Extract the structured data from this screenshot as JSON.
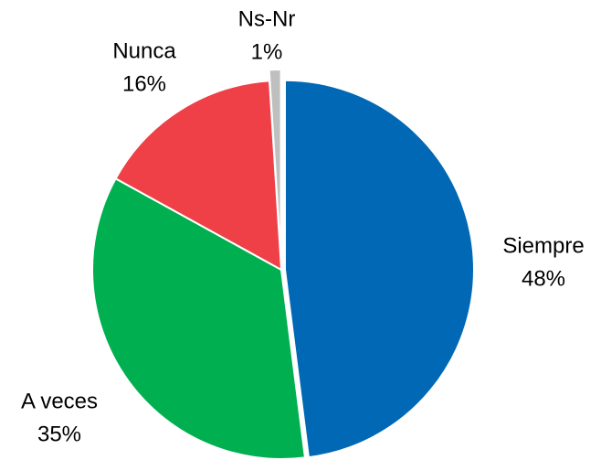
{
  "chart_data": {
    "type": "pie",
    "categories": [
      "Siempre",
      "A veces",
      "Nunca",
      "Ns-Nr"
    ],
    "values": [
      48,
      35,
      16,
      1
    ],
    "value_labels": [
      "48%",
      "35%",
      "16%",
      "1%"
    ],
    "colors": [
      "#0068b5",
      "#00b050",
      "#ee4046",
      "#bfbfbf"
    ]
  }
}
